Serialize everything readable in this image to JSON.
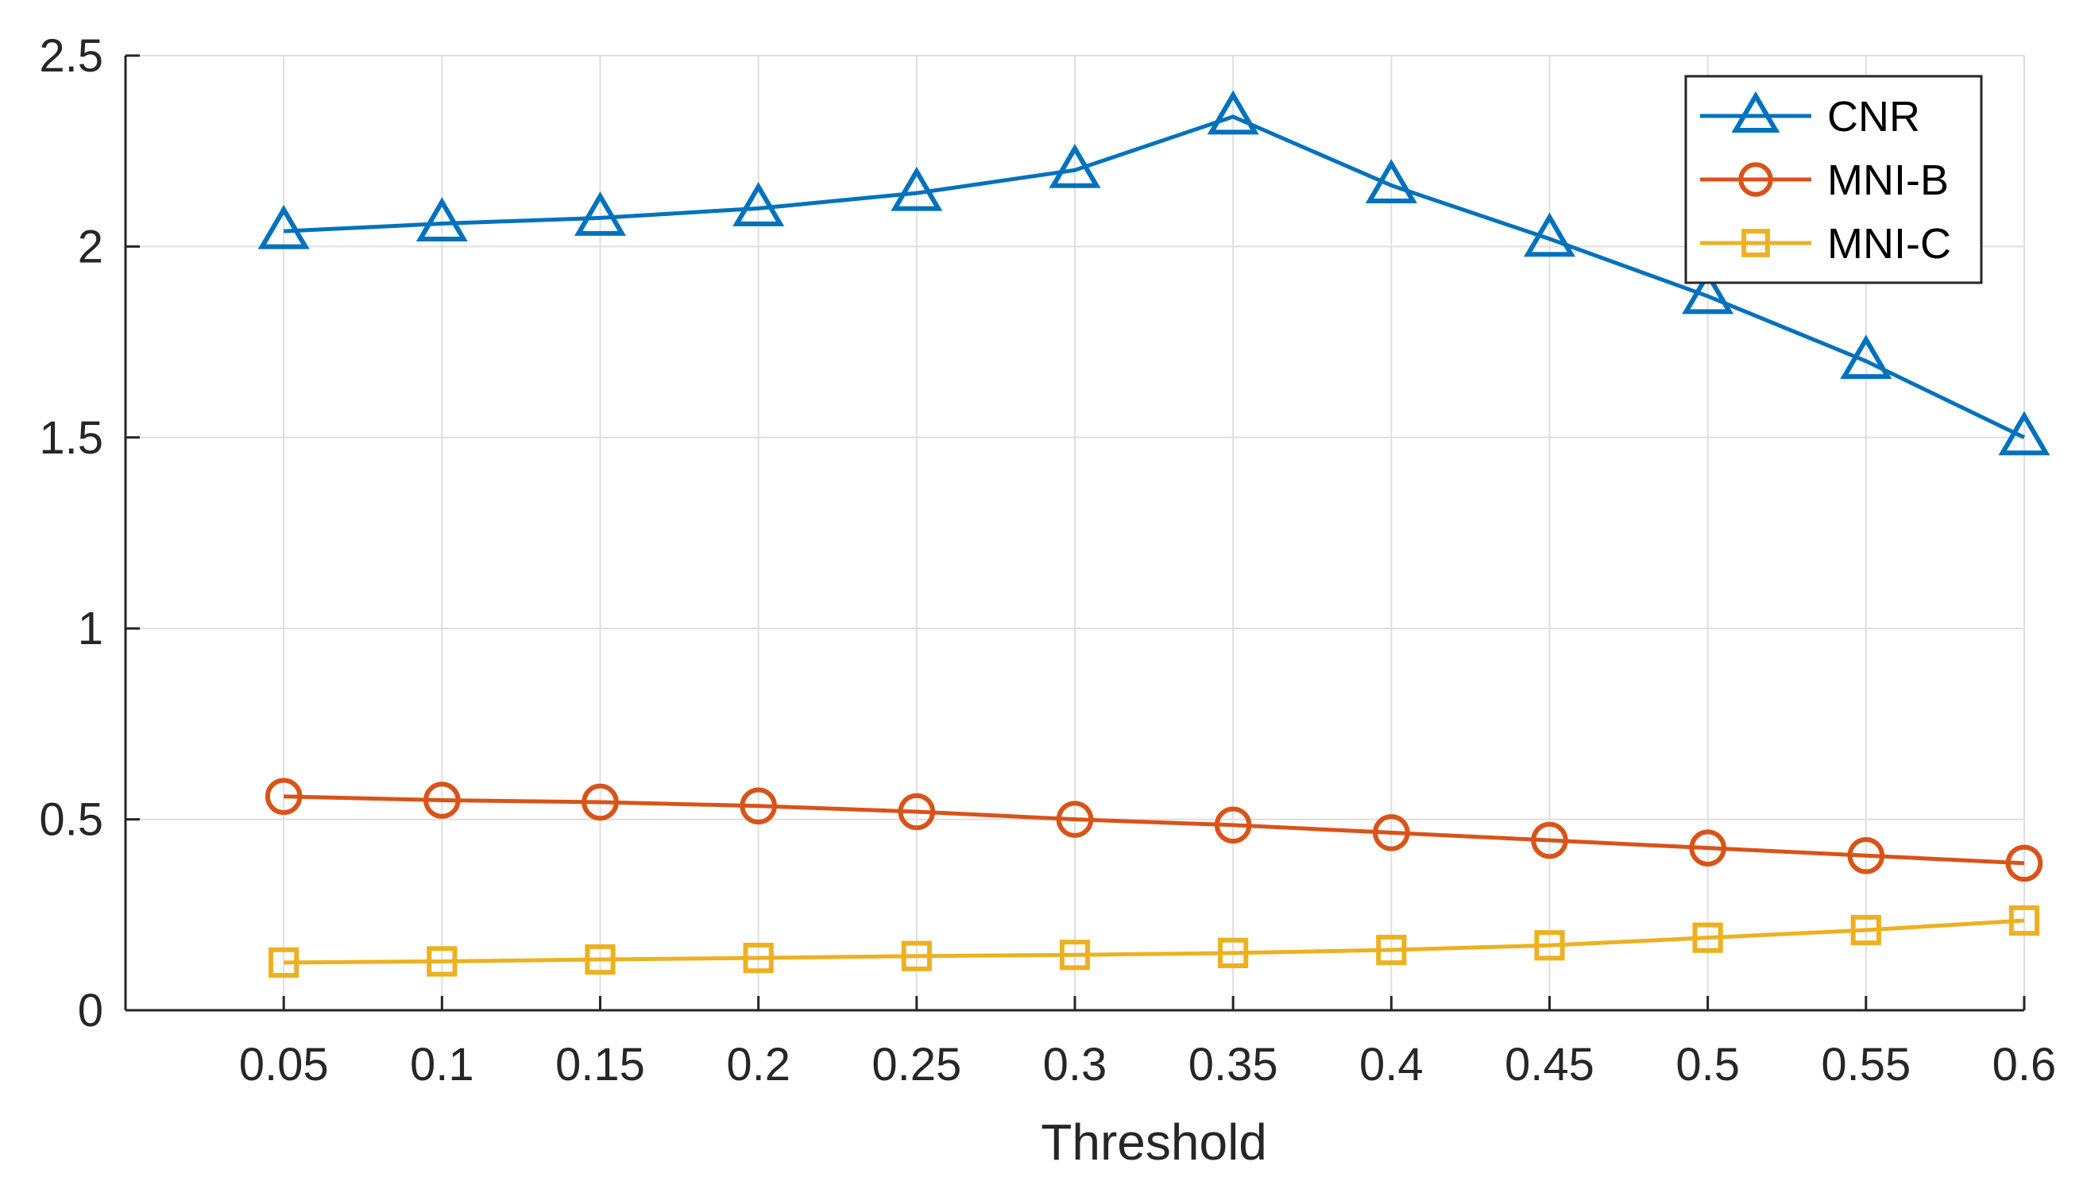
{
  "chart_data": {
    "type": "line",
    "xlabel": "Threshold",
    "ylabel": "",
    "title": "",
    "x": [
      0.05,
      0.1,
      0.15,
      0.2,
      0.25,
      0.3,
      0.35,
      0.4,
      0.45,
      0.5,
      0.55,
      0.6
    ],
    "x_tick_labels": [
      "0.05",
      "0.1",
      "0.15",
      "0.2",
      "0.25",
      "0.3",
      "0.35",
      "0.4",
      "0.45",
      "0.5",
      "0.55",
      "0.6"
    ],
    "xlim": [
      0,
      0.6
    ],
    "ylim": [
      0,
      2.5
    ],
    "y_ticks": [
      0,
      0.5,
      1,
      1.5,
      2,
      2.5
    ],
    "y_tick_labels": [
      "0",
      "0.5",
      "1",
      "1.5",
      "2",
      "2.5"
    ],
    "grid": true,
    "legend_position": "top-right",
    "series": [
      {
        "name": "CNR",
        "color": "#0072BD",
        "marker": "triangle",
        "values": [
          2.04,
          2.06,
          2.075,
          2.1,
          2.14,
          2.2,
          2.34,
          2.16,
          2.02,
          1.87,
          1.7,
          1.5
        ]
      },
      {
        "name": "MNI-B",
        "color": "#D95319",
        "marker": "circle",
        "values": [
          0.56,
          0.55,
          0.545,
          0.535,
          0.52,
          0.5,
          0.485,
          0.465,
          0.445,
          0.425,
          0.405,
          0.385
        ]
      },
      {
        "name": "MNI-C",
        "color": "#EDB120",
        "marker": "square",
        "values": [
          0.125,
          0.128,
          0.133,
          0.137,
          0.142,
          0.145,
          0.15,
          0.158,
          0.17,
          0.19,
          0.21,
          0.235
        ]
      }
    ]
  }
}
